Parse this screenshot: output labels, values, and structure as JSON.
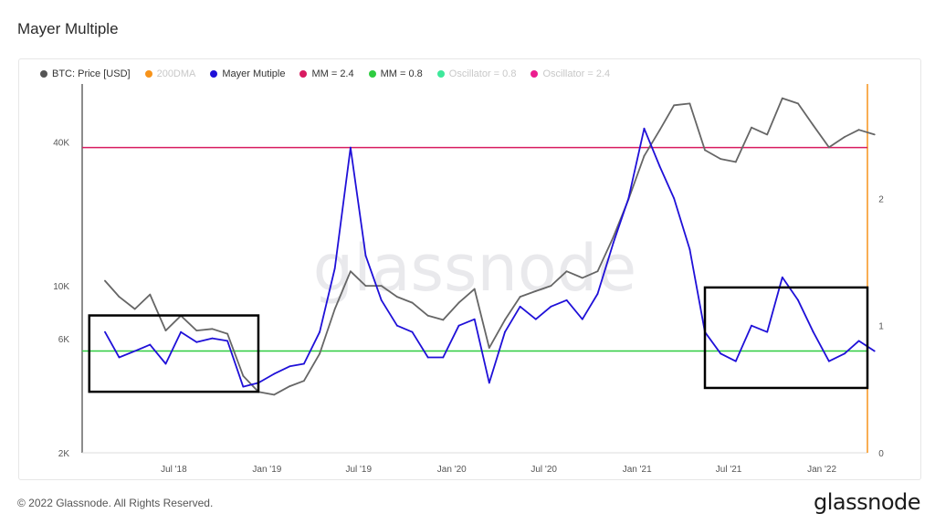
{
  "page_title": "Mayer Multiple",
  "footer": "© 2022 Glassnode. All Rights Reserved.",
  "brand": "glassnode",
  "watermark": "glassnode",
  "legend": [
    {
      "label": "BTC: Price [USD]",
      "color": "#555555",
      "muted": false
    },
    {
      "label": "200DMA",
      "color": "#f7931a",
      "muted": true
    },
    {
      "label": "Mayer Mutiple",
      "color": "#1f10d8",
      "muted": false
    },
    {
      "label": "MM = 2.4",
      "color": "#d81b60",
      "muted": false
    },
    {
      "label": "MM = 0.8",
      "color": "#2ecc40",
      "muted": false
    },
    {
      "label": "Oscillator = 0.8",
      "color": "#3ee89b",
      "muted": true
    },
    {
      "label": "Oscillator = 2.4",
      "color": "#ec1d8f",
      "muted": true
    }
  ],
  "chart_data": {
    "type": "line",
    "title": "Mayer Multiple",
    "x_range": [
      "2018-01",
      "2022-04"
    ],
    "x_ticks": [
      "Jul '18",
      "Jan '19",
      "Jul '19",
      "Jan '20",
      "Jul '20",
      "Jan '21",
      "Jul '21",
      "Jan '22"
    ],
    "y_left": {
      "scale": "log",
      "range": [
        2000,
        70000
      ],
      "ticks": [
        "2K",
        "6K",
        "10K",
        "40K"
      ],
      "tick_values": [
        2000,
        6000,
        10000,
        40000
      ]
    },
    "y_right": {
      "scale": "linear",
      "range": [
        0,
        2.9
      ],
      "ticks": [
        "0",
        "1",
        "2"
      ],
      "tick_values": [
        0,
        1,
        2
      ]
    },
    "series": [
      {
        "name": "BTC: Price [USD]",
        "axis": "left",
        "color": "#666666",
        "x": [
          "2018-02",
          "2018-03",
          "2018-04",
          "2018-05",
          "2018-06",
          "2018-07",
          "2018-08",
          "2018-09",
          "2018-10",
          "2018-11",
          "2018-12",
          "2019-01",
          "2019-02",
          "2019-03",
          "2019-04",
          "2019-05",
          "2019-06",
          "2019-07",
          "2019-08",
          "2019-09",
          "2019-10",
          "2019-11",
          "2019-12",
          "2020-01",
          "2020-02",
          "2020-03",
          "2020-04",
          "2020-05",
          "2020-06",
          "2020-07",
          "2020-08",
          "2020-09",
          "2020-10",
          "2020-11",
          "2020-12",
          "2021-01",
          "2021-02",
          "2021-03",
          "2021-04",
          "2021-05",
          "2021-06",
          "2021-07",
          "2021-08",
          "2021-09",
          "2021-10",
          "2021-11",
          "2021-12",
          "2022-01",
          "2022-02",
          "2022-03",
          "2022-04"
        ],
        "values": [
          10500,
          9000,
          8000,
          9200,
          6500,
          7500,
          6500,
          6600,
          6300,
          4200,
          3600,
          3500,
          3800,
          4000,
          5200,
          8000,
          11500,
          10000,
          10000,
          9000,
          8500,
          7500,
          7200,
          8500,
          9700,
          5500,
          7200,
          9000,
          9500,
          10000,
          11500,
          10800,
          11500,
          16000,
          23000,
          35000,
          45000,
          57000,
          58000,
          37000,
          34000,
          33000,
          46000,
          43000,
          61000,
          58000,
          47000,
          38000,
          42000,
          45000,
          43000
        ]
      },
      {
        "name": "Mayer Mutiple",
        "axis": "right",
        "color": "#1f10d8",
        "x": [
          "2018-02",
          "2018-03",
          "2018-04",
          "2018-05",
          "2018-06",
          "2018-07",
          "2018-08",
          "2018-09",
          "2018-10",
          "2018-11",
          "2018-12",
          "2019-01",
          "2019-02",
          "2019-03",
          "2019-04",
          "2019-05",
          "2019-06",
          "2019-07",
          "2019-08",
          "2019-09",
          "2019-10",
          "2019-11",
          "2019-12",
          "2020-01",
          "2020-02",
          "2020-03",
          "2020-04",
          "2020-05",
          "2020-06",
          "2020-07",
          "2020-08",
          "2020-09",
          "2020-10",
          "2020-11",
          "2020-12",
          "2021-01",
          "2021-02",
          "2021-03",
          "2021-04",
          "2021-05",
          "2021-06",
          "2021-07",
          "2021-08",
          "2021-09",
          "2021-10",
          "2021-11",
          "2021-12",
          "2022-01",
          "2022-02",
          "2022-03",
          "2022-04"
        ],
        "values": [
          0.95,
          0.75,
          0.8,
          0.85,
          0.7,
          0.95,
          0.87,
          0.9,
          0.88,
          0.52,
          0.55,
          0.62,
          0.68,
          0.7,
          0.95,
          1.45,
          2.4,
          1.55,
          1.2,
          1.0,
          0.95,
          0.75,
          0.75,
          1.0,
          1.05,
          0.55,
          0.95,
          1.15,
          1.05,
          1.15,
          1.2,
          1.05,
          1.25,
          1.65,
          2.0,
          2.55,
          2.25,
          2.0,
          1.6,
          0.95,
          0.78,
          0.72,
          1.0,
          0.95,
          1.38,
          1.2,
          0.95,
          0.72,
          0.78,
          0.88,
          0.8
        ]
      },
      {
        "name": "MM = 2.4",
        "axis": "right",
        "color": "#d81b60",
        "values": [
          2.4
        ]
      },
      {
        "name": "MM = 0.8",
        "axis": "right",
        "color": "#2ecc40",
        "values": [
          0.8
        ]
      }
    ],
    "highlight_boxes": [
      {
        "x": [
          "2018-01",
          "2018-12"
        ],
        "y_right": [
          0.48,
          1.08
        ]
      },
      {
        "x": [
          "2021-05",
          "2022-04"
        ],
        "y_right": [
          0.51,
          1.3
        ]
      }
    ],
    "grid": false,
    "legend_position": "top-left"
  }
}
